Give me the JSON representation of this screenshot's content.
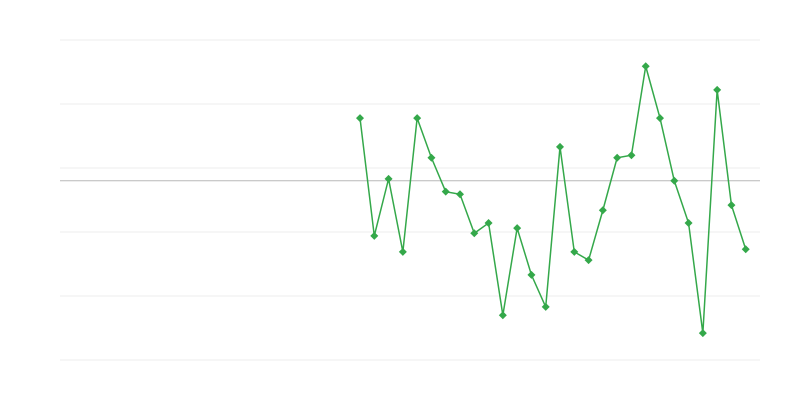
{
  "chart_data": {
    "type": "line",
    "x": [
      0,
      1,
      2,
      3,
      4,
      5,
      6,
      7,
      8,
      9,
      10,
      11,
      12,
      13,
      14,
      15,
      16,
      17,
      18,
      19,
      20,
      21,
      22,
      23,
      24,
      25,
      26,
      27,
      28,
      29,
      30,
      31,
      32,
      33,
      34,
      35,
      36,
      37,
      38,
      39,
      40,
      41,
      42,
      43,
      44,
      45,
      46,
      47,
      48,
      49
    ],
    "series": [
      {
        "color": "#34a84a",
        "values": [
          null,
          null,
          null,
          null,
          null,
          null,
          null,
          null,
          null,
          null,
          null,
          null,
          null,
          null,
          null,
          null,
          null,
          null,
          null,
          null,
          null,
          3.78,
          1.94,
          2.83,
          1.69,
          3.78,
          3.16,
          2.63,
          2.59,
          1.98,
          2.14,
          0.7,
          2.06,
          1.33,
          0.83,
          3.33,
          1.69,
          1.56,
          2.34,
          3.16,
          3.2,
          4.59,
          3.78,
          2.8,
          2.14,
          0.42,
          4.22,
          2.42,
          1.73,
          null
        ]
      }
    ],
    "xlim": [
      0,
      49
    ],
    "ylim": [
      0,
      5
    ],
    "yticks": [
      0,
      1,
      2,
      3,
      4,
      5
    ],
    "grid": true,
    "reference_line": 2.8,
    "marker": "diamond"
  }
}
